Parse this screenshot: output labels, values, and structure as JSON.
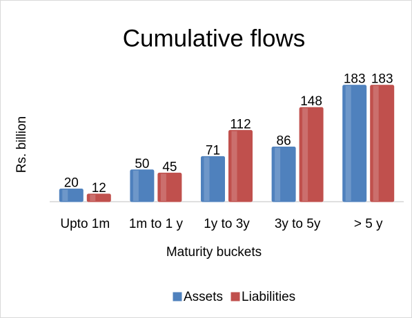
{
  "chart_data": {
    "type": "bar",
    "title": "Cumulative flows",
    "x_label": "Maturity buckets",
    "y_label": "Rs. billion",
    "categories": [
      "Upto 1m",
      "1m to 1 y",
      "1y to 3y",
      "3y to 5y",
      "> 5 y"
    ],
    "series": [
      {
        "name": "Assets",
        "color": "#4f81bd",
        "values": [
          20,
          50,
          71,
          86,
          183
        ]
      },
      {
        "name": "Liabilities",
        "color": "#c0504d",
        "values": [
          12,
          45,
          112,
          148,
          183
        ]
      }
    ],
    "ylim": [
      0,
      200
    ],
    "legend": "bottom"
  }
}
